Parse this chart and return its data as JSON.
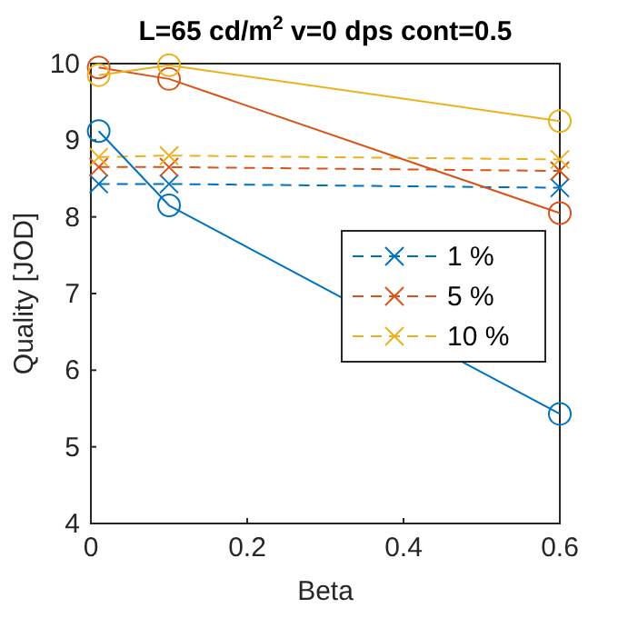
{
  "chart_data": {
    "type": "line",
    "title": "L=65 cd/m$^{2}$  v=0 dps  cont=0.5",
    "xlabel": "Beta",
    "ylabel": "Quality [JOD]",
    "x": [
      0.01,
      0.1,
      0.6
    ],
    "xlim": [
      0,
      0.6
    ],
    "xticks": [
      0,
      0.2,
      0.4,
      0.6
    ],
    "ylim": [
      4,
      10
    ],
    "yticks": [
      4,
      5,
      6,
      7,
      8,
      9,
      10
    ],
    "legend": "right",
    "grid": false,
    "series": [
      {
        "name": "1 %",
        "color": "#0072bd",
        "marker": "cross",
        "line_style": "dashed",
        "values": [
          8.43,
          8.43,
          8.38
        ]
      },
      {
        "name": "5 %",
        "color": "#d95319",
        "marker": "cross",
        "line_style": "dashed",
        "values": [
          8.65,
          8.65,
          8.6
        ]
      },
      {
        "name": "10 %",
        "color": "#edb120",
        "marker": "cross",
        "line_style": "dashed",
        "values": [
          8.78,
          8.8,
          8.75
        ]
      },
      {
        "color": "#0072bd",
        "marker": "circle",
        "line_style": "solid",
        "values": [
          9.12,
          8.15,
          5.43
        ]
      },
      {
        "color": "#d95319",
        "marker": "circle",
        "line_style": "solid",
        "values": [
          9.95,
          9.8,
          8.05
        ]
      },
      {
        "color": "#edb120",
        "marker": "circle",
        "line_style": "solid",
        "values": [
          9.85,
          9.98,
          9.25
        ]
      }
    ]
  }
}
